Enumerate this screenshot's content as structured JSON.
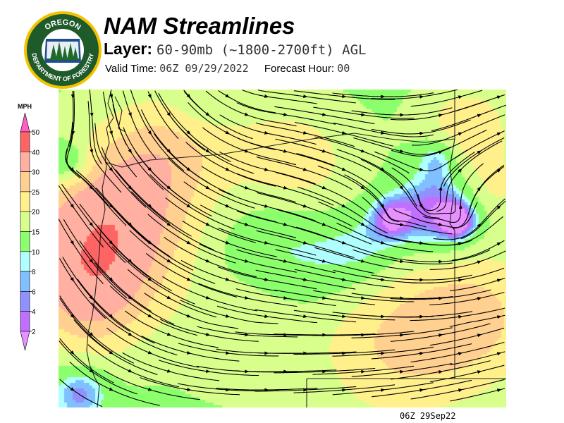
{
  "logo": {
    "top_text": "OREGON",
    "bottom_text": "DEPARTMENT OF FORESTRY"
  },
  "header": {
    "title": "NAM Streamlines",
    "layer_label": "Layer:",
    "layer_value": "60-90mb (~1800-2700ft) AGL",
    "valid_label": "Valid Time:",
    "valid_value": "06Z 09/29/2022",
    "forecast_label": "Forecast Hour:",
    "forecast_value": "00"
  },
  "legend": {
    "unit": "MPH",
    "ticks": [
      "50",
      "40",
      "30",
      "25",
      "20",
      "15",
      "10",
      "8",
      "6",
      "4",
      "2"
    ],
    "colors": {
      "above_50": "#ff5fbf",
      "40_50": "#ff6464",
      "30_40": "#ffb0a0",
      "25_30": "#ffd090",
      "20_25": "#fff08c",
      "15_20": "#d8ff8c",
      "10_15": "#8cff6c",
      "8_10": "#b0ffff",
      "6_8": "#80c0ff",
      "4_6": "#9090ff",
      "2_4": "#c070ff",
      "below_2": "#e890ff"
    }
  },
  "footer": {
    "stamp": "06Z 29Sep22"
  }
}
